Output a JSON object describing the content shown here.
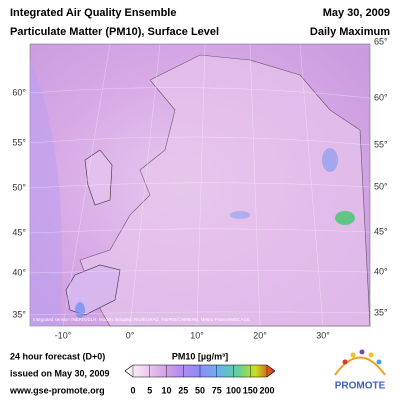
{
  "header": {
    "title": "Integrated Air Quality Ensemble",
    "subtitle": "Particulate Matter (PM10), Surface Level",
    "date": "May 30, 2009",
    "statistic": "Daily Maximum"
  },
  "map": {
    "lat_labels_left": [
      "60°",
      "55°",
      "50°",
      "45°",
      "40°",
      "35°"
    ],
    "lat_labels_right": [
      "65°",
      "60°",
      "55°",
      "50°",
      "45°",
      "40°",
      "35°"
    ],
    "lon_labels": [
      "-10°",
      "0°",
      "10°",
      "20°",
      "30°"
    ],
    "credits": "Integrated service: INERIS/DLR. Models included: RIU/EURAD, INERIS/CHIMERE, Meteo-France/MOCAGE"
  },
  "colorbar": {
    "title": "PM10 [µg/m³]",
    "ticks": [
      "0",
      "5",
      "10",
      "25",
      "50",
      "75",
      "100",
      "150",
      "200"
    ]
  },
  "footer": {
    "forecast": "24 hour forecast (D+0)",
    "issued": "issued on May 30, 2009",
    "url": "www.gse-promote.org",
    "logo": "PROMOTE"
  }
}
